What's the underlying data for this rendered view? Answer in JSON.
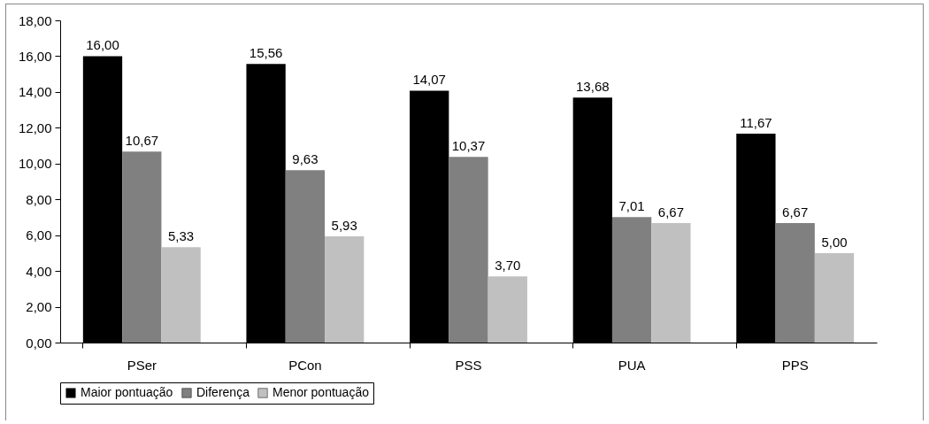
{
  "chart_data": {
    "type": "bar",
    "categories": [
      "PSer",
      "PCon",
      "PSS",
      "PUA",
      "PPS"
    ],
    "series": [
      {
        "name": "Maior pontuação",
        "color": "#000000",
        "values": [
          16.0,
          15.56,
          14.07,
          13.68,
          11.67
        ],
        "value_labels": [
          "16,00",
          "15,56",
          "14,07",
          "13,68",
          "11,67"
        ]
      },
      {
        "name": "Diferença",
        "color": "#808080",
        "values": [
          10.67,
          9.63,
          10.37,
          7.01,
          6.67
        ],
        "value_labels": [
          "10,67",
          "9,63",
          "10,37",
          "7,01",
          "6,67"
        ]
      },
      {
        "name": "Menor pontuação",
        "color": "#c0c0c0",
        "values": [
          5.33,
          5.93,
          3.7,
          6.67,
          5.0
        ],
        "value_labels": [
          "5,33",
          "5,93",
          "3,70",
          "6,67",
          "5,00"
        ]
      }
    ],
    "ylim": [
      0,
      18
    ],
    "yticks": [
      {
        "value": 0,
        "label": "0,00"
      },
      {
        "value": 2,
        "label": "2,00"
      },
      {
        "value": 4,
        "label": "4,00"
      },
      {
        "value": 6,
        "label": "6,00"
      },
      {
        "value": 8,
        "label": "8,00"
      },
      {
        "value": 10,
        "label": "10,00"
      },
      {
        "value": 12,
        "label": "12,00"
      },
      {
        "value": 14,
        "label": "14,00"
      },
      {
        "value": 16,
        "label": "16,00"
      },
      {
        "value": 18,
        "label": "18,00"
      }
    ],
    "grid": false,
    "legend": "bottom"
  }
}
